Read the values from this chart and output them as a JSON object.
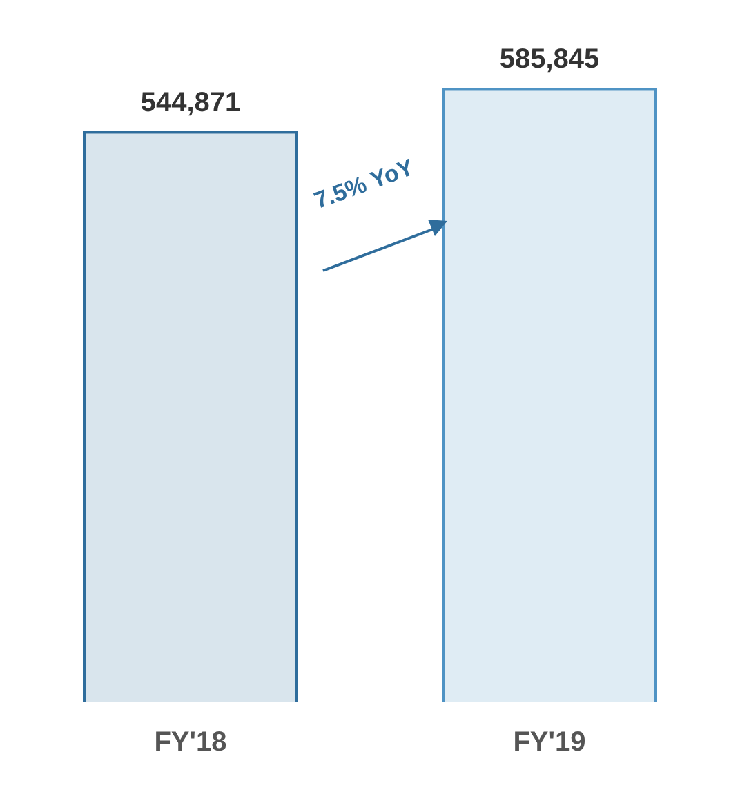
{
  "chart_data": {
    "type": "bar",
    "categories": [
      "FY'18",
      "FY'19"
    ],
    "values": [
      544871,
      585845
    ],
    "colors": [
      "#2f6d9c",
      "#4f93c4"
    ],
    "value_labels": [
      "544,871",
      "585,845"
    ],
    "grid": false,
    "legend": false,
    "tick_labels": "x",
    "annotations": [
      "7.5% YoY"
    ]
  }
}
